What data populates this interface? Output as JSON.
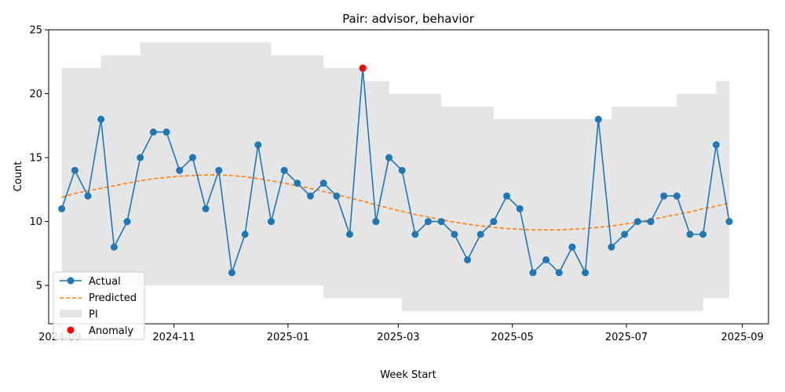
{
  "chart_data": {
    "type": "line",
    "title": "Pair: advisor, behavior",
    "xlabel": "Week Start",
    "ylabel": "Count",
    "ylim": [
      2,
      25
    ],
    "xlim": [
      "2024-08-26",
      "2025-09-15"
    ],
    "yticks": [
      5,
      10,
      15,
      20,
      25
    ],
    "xticks": [
      "2024-09-01",
      "2024-11-01",
      "2025-01-01",
      "2025-03-01",
      "2025-05-01",
      "2025-07-01",
      "2025-09-01"
    ],
    "xtick_labels": [
      "2024-09",
      "2024-11",
      "2025-01",
      "2025-03",
      "2025-05",
      "2025-07",
      "2025-09"
    ],
    "grid": false,
    "legend_position": "lower-left",
    "colors": {
      "actual": "#1f77b4",
      "predicted": "#ff7f0e",
      "interval": "#e5e5e5",
      "anomaly": "#ff0000"
    },
    "x": [
      "2024-09-02",
      "2024-09-09",
      "2024-09-16",
      "2024-09-23",
      "2024-09-30",
      "2024-10-07",
      "2024-10-14",
      "2024-10-21",
      "2024-10-28",
      "2024-11-04",
      "2024-11-11",
      "2024-11-18",
      "2024-11-25",
      "2024-12-02",
      "2024-12-09",
      "2024-12-16",
      "2024-12-23",
      "2024-12-30",
      "2025-01-06",
      "2025-01-13",
      "2025-01-20",
      "2025-01-27",
      "2025-02-03",
      "2025-02-10",
      "2025-02-17",
      "2025-02-24",
      "2025-03-03",
      "2025-03-10",
      "2025-03-17",
      "2025-03-24",
      "2025-03-31",
      "2025-04-07",
      "2025-04-14",
      "2025-04-21",
      "2025-04-28",
      "2025-05-05",
      "2025-05-12",
      "2025-05-19",
      "2025-05-26",
      "2025-06-02",
      "2025-06-09",
      "2025-06-16",
      "2025-06-23",
      "2025-06-30",
      "2025-07-07",
      "2025-07-14",
      "2025-07-21",
      "2025-07-28",
      "2025-08-04",
      "2025-08-11",
      "2025-08-18",
      "2025-08-25"
    ],
    "series": [
      {
        "name": "Actual",
        "values": [
          11,
          14,
          12,
          18,
          8,
          10,
          15,
          17,
          17,
          14,
          15,
          11,
          14,
          6,
          9,
          16,
          10,
          14,
          13,
          12,
          13,
          12,
          9,
          22,
          10,
          15,
          14,
          9,
          10,
          10,
          9,
          7,
          9,
          10,
          12,
          11,
          6,
          7,
          6,
          8,
          6,
          18,
          8,
          9,
          10,
          10,
          12,
          12,
          9,
          9,
          16,
          10
        ]
      },
      {
        "name": "Predicted",
        "values": [
          11.9,
          12.2,
          12.4,
          12.6,
          12.8,
          13.0,
          13.2,
          13.35,
          13.45,
          13.55,
          13.6,
          13.65,
          13.65,
          13.6,
          13.5,
          13.35,
          13.2,
          13.0,
          12.8,
          12.6,
          12.35,
          12.1,
          11.85,
          11.6,
          11.3,
          11.05,
          10.8,
          10.55,
          10.35,
          10.15,
          9.95,
          9.8,
          9.65,
          9.55,
          9.45,
          9.4,
          9.35,
          9.35,
          9.35,
          9.4,
          9.45,
          9.55,
          9.65,
          9.8,
          9.95,
          10.15,
          10.35,
          10.55,
          10.75,
          11.0,
          11.2,
          11.45
        ]
      }
    ],
    "interval": {
      "name": "PI",
      "upper": [
        22,
        22,
        22,
        23,
        23,
        23,
        24,
        24,
        24,
        24,
        24,
        24,
        24,
        24,
        24,
        24,
        23,
        23,
        23,
        23,
        22,
        22,
        22,
        21,
        21,
        20,
        20,
        20,
        20,
        19,
        19,
        19,
        19,
        18,
        18,
        18,
        18,
        18,
        18,
        18,
        18,
        18,
        19,
        19,
        19,
        19,
        19,
        20,
        20,
        20,
        21,
        21
      ],
      "lower": [
        5,
        5,
        5,
        5,
        5,
        5,
        5,
        5,
        5,
        5,
        5,
        5,
        5,
        5,
        5,
        5,
        5,
        5,
        5,
        5,
        4,
        4,
        4,
        4,
        4,
        4,
        3,
        3,
        3,
        3,
        3,
        3,
        3,
        3,
        3,
        3,
        3,
        3,
        3,
        3,
        3,
        3,
        3,
        3,
        3,
        3,
        3,
        3,
        3,
        4,
        4,
        4
      ]
    },
    "anomalies": [
      {
        "x": "2025-02-10",
        "y": 22,
        "name": "Anomaly"
      }
    ],
    "legend": [
      "Actual",
      "Predicted",
      "PI",
      "Anomaly"
    ]
  }
}
